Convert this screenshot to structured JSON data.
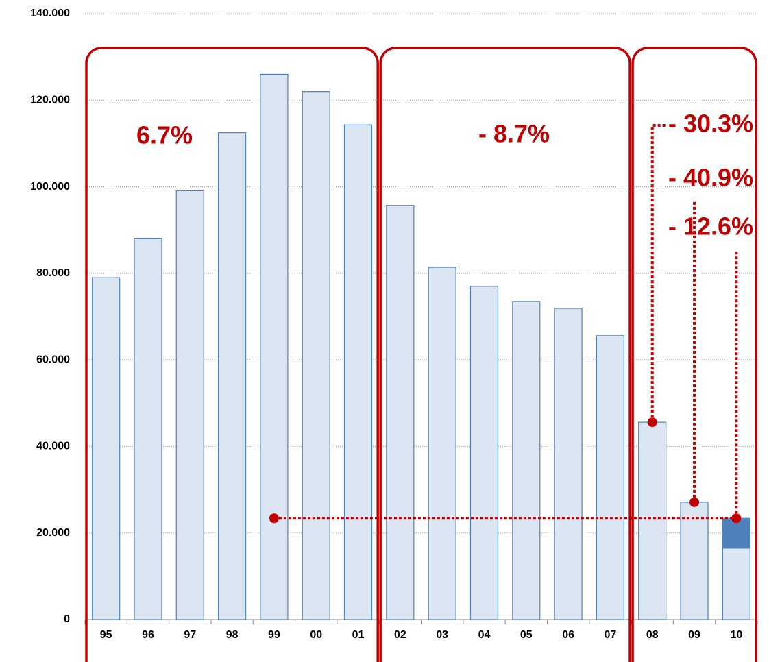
{
  "chart_data": {
    "type": "bar",
    "categories": [
      "95",
      "96",
      "97",
      "98",
      "99",
      "00",
      "01",
      "02",
      "03",
      "04",
      "05",
      "06",
      "07",
      "08",
      "09",
      "10"
    ],
    "series": [
      {
        "color": "#dce6f2",
        "values": [
          79000,
          88000,
          99200,
          112500,
          126000,
          122000,
          114300,
          95700,
          81400,
          77000,
          73500,
          71900,
          65600,
          45600,
          27100,
          16500
        ]
      },
      {
        "color": "#4f81bd",
        "values": [
          null,
          null,
          null,
          null,
          null,
          null,
          null,
          null,
          null,
          null,
          null,
          null,
          null,
          null,
          null,
          6900
        ]
      }
    ],
    "stacked": true,
    "ylim": [
      0,
      140000
    ],
    "yticks": [
      0,
      {
        "value": 20000,
        "label": "20.000"
      },
      {
        "value": 40000,
        "label": "40.000"
      },
      {
        "value": 60000,
        "label": "60.000"
      },
      {
        "value": 80000,
        "label": "80.000"
      },
      {
        "value": 100000,
        "label": "100.000"
      },
      {
        "value": 120000,
        "label": "120.000"
      },
      {
        "value": 140000,
        "label": "140.000"
      }
    ],
    "grid": true,
    "annotations": [
      "6.7%",
      "- 8.7%",
      "- 30.3%",
      "- 40.9%",
      "- 12.6%"
    ],
    "annotation_color": "#c00000"
  }
}
